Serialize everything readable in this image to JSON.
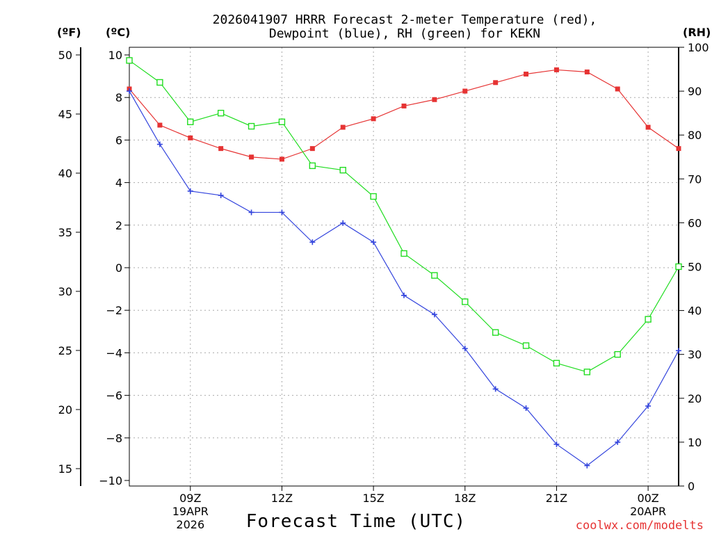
{
  "chart_data": {
    "type": "line",
    "title_line1": "2026041907 HRRR Forecast 2-meter Temperature (red),",
    "title_line2": "Dewpoint (blue), RH (green) for KEKN",
    "xlabel": "Forecast Time (UTC)",
    "credit": "coolwx.com/modelts",
    "units": {
      "left_f": "(ºF)",
      "left_c": "(ºC)",
      "right": "(RH)"
    },
    "x_hours": [
      7,
      8,
      9,
      10,
      11,
      12,
      13,
      14,
      15,
      16,
      17,
      18,
      19,
      20,
      21,
      22,
      23,
      24,
      25
    ],
    "xlim": [
      7,
      25
    ],
    "x_ticks": [
      {
        "hour": 9,
        "lines": [
          "09Z",
          "19APR",
          "2026"
        ]
      },
      {
        "hour": 12,
        "lines": [
          "12Z"
        ]
      },
      {
        "hour": 15,
        "lines": [
          "15Z"
        ]
      },
      {
        "hour": 18,
        "lines": [
          "18Z"
        ]
      },
      {
        "hour": 21,
        "lines": [
          "21Z"
        ]
      },
      {
        "hour": 24,
        "lines": [
          "00Z",
          "20APR"
        ]
      }
    ],
    "y_celsius": {
      "lim": [
        -10,
        10
      ],
      "ticks": [
        "10",
        "8",
        "6",
        "4",
        "2",
        "0",
        "−2",
        "−4",
        "−6",
        "−8",
        "−10"
      ]
    },
    "y_fahrenheit": {
      "ticks": [
        "50",
        "45",
        "40",
        "35",
        "30",
        "25",
        "20",
        "15"
      ]
    },
    "y_rh": {
      "lim": [
        0,
        100
      ],
      "ticks": [
        "100",
        "90",
        "80",
        "70",
        "60",
        "50",
        "40",
        "30",
        "20",
        "10",
        "0"
      ]
    },
    "series": [
      {
        "name": "Temperature",
        "axis": "celsius",
        "color": "#e63333",
        "marker": "filled-square",
        "values": [
          8.4,
          6.7,
          6.1,
          5.6,
          5.2,
          5.1,
          5.6,
          6.6,
          7.0,
          7.6,
          7.9,
          8.3,
          8.7,
          9.1,
          9.3,
          9.2,
          8.4,
          6.6,
          5.6
        ]
      },
      {
        "name": "Dewpoint",
        "axis": "celsius",
        "color": "#3344dd",
        "marker": "plus",
        "values": [
          8.3,
          5.8,
          3.6,
          3.4,
          2.6,
          2.6,
          1.2,
          2.1,
          1.2,
          -1.3,
          -2.2,
          -3.8,
          -5.7,
          -6.6,
          -8.3,
          -9.3,
          -8.2,
          -6.5,
          -3.9
        ]
      },
      {
        "name": "RH",
        "axis": "rh",
        "color": "#22dd22",
        "marker": "open-square",
        "values": [
          97,
          92,
          83,
          85,
          82,
          83,
          73,
          72,
          66,
          53,
          48,
          42,
          35,
          32,
          28,
          26,
          30,
          38,
          50
        ]
      }
    ]
  }
}
